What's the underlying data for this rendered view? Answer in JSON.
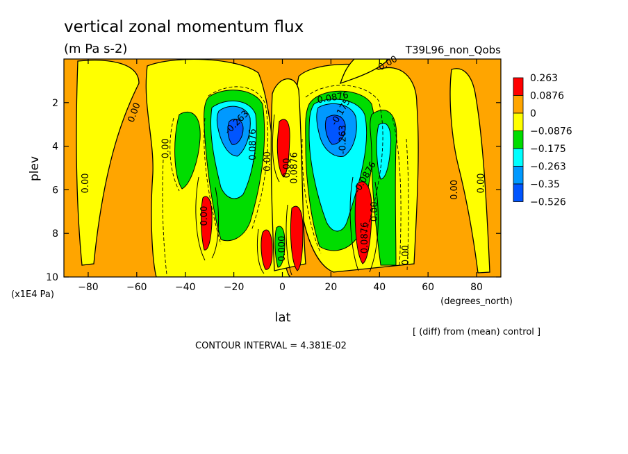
{
  "chart_data": {
    "type": "heatmap",
    "title": "vertical zonal momentum flux",
    "subtitle": "(m Pa s-2)",
    "run_label": "T39L96_non_Qobs",
    "xlabel": "lat",
    "x_units": "(degrees_north)",
    "ylabel": "plev",
    "y_units": "(x1E4 Pa)",
    "xlim": [
      -90,
      90
    ],
    "ylim": [
      10,
      0
    ],
    "x_ticks": [
      -80,
      -60,
      -40,
      -20,
      0,
      20,
      40,
      60,
      80
    ],
    "y_ticks": [
      2,
      4,
      6,
      8,
      10
    ],
    "x_tick_labels": [
      "−80",
      "−60",
      "−40",
      "−20",
      "0",
      "20",
      "40",
      "60",
      "80"
    ],
    "y_tick_labels": [
      "2",
      "4",
      "6",
      "8",
      "10"
    ],
    "legend": {
      "placement": "right",
      "labels": [
        "0.263",
        "0.0876",
        "0",
        "−0.0876",
        "−0.175",
        "−0.263",
        "−0.35",
        "−0.526"
      ],
      "colors": [
        "#ff0000",
        "#ffa500",
        "#ffff00",
        "#00dd00",
        "#00ffff",
        "#0099ff",
        "#0055ff"
      ]
    },
    "contour_interval_text": "CONTOUR INTERVAL = 4.381E-02",
    "diff_note": "[ (diff) from (mean) control ]",
    "contour_labels": [
      {
        "text": "0.00",
        "lat": -60,
        "plev": 2.5,
        "angle": -70
      },
      {
        "text": "0.00",
        "lat": -80,
        "plev": 5.7,
        "angle": -90
      },
      {
        "text": "0.00",
        "lat": -47,
        "plev": 4.1,
        "angle": -90
      },
      {
        "text": "-0.263",
        "lat": -18,
        "plev": 3.0,
        "angle": -45
      },
      {
        "text": "-0.0876",
        "lat": -11,
        "plev": 4.0,
        "angle": -90
      },
      {
        "text": "0.00",
        "lat": -5,
        "plev": 4.7,
        "angle": -90
      },
      {
        "text": "0.00",
        "lat": -31,
        "plev": 7.2,
        "angle": -90
      },
      {
        "text": "0.0876",
        "lat": 6,
        "plev": 5.0,
        "angle": -90
      },
      {
        "text": "0.00",
        "lat": 3,
        "plev": 5.0,
        "angle": -90
      },
      {
        "text": "0.000",
        "lat": 1,
        "plev": 8.7,
        "angle": -90
      },
      {
        "text": "0.0876",
        "lat": 21,
        "plev": 1.9,
        "angle": -10
      },
      {
        "text": "-0.175",
        "lat": 25,
        "plev": 2.5,
        "angle": -60
      },
      {
        "text": "-0.263",
        "lat": 26,
        "plev": 3.7,
        "angle": -90
      },
      {
        "text": "-0.0876",
        "lat": 35,
        "plev": 5.5,
        "angle": -60
      },
      {
        "text": "0.0876",
        "lat": 35,
        "plev": 8.2,
        "angle": -90
      },
      {
        "text": "0.00",
        "lat": 39,
        "plev": 7.0,
        "angle": -90
      },
      {
        "text": "0.00",
        "lat": 44,
        "plev": 0.3,
        "angle": -30
      },
      {
        "text": "0.00",
        "lat": 52,
        "plev": 9.0,
        "angle": -90
      },
      {
        "text": "0.00",
        "lat": 72,
        "plev": 6.0,
        "angle": -90
      },
      {
        "text": "0.00",
        "lat": 83,
        "plev": 5.7,
        "angle": -90
      }
    ]
  }
}
